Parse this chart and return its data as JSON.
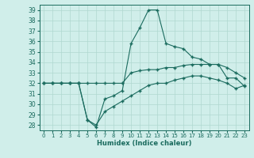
{
  "xlabel": "Humidex (Indice chaleur)",
  "bg_color": "#d0eeea",
  "line_color": "#1a6b5e",
  "grid_color": "#b0d8d0",
  "xlim": [
    -0.5,
    23.5
  ],
  "ylim": [
    27.5,
    39.5
  ],
  "yticks": [
    28,
    29,
    30,
    31,
    32,
    33,
    34,
    35,
    36,
    37,
    38,
    39
  ],
  "xticks": [
    0,
    1,
    2,
    3,
    4,
    5,
    6,
    7,
    8,
    9,
    10,
    11,
    12,
    13,
    14,
    15,
    16,
    17,
    18,
    19,
    20,
    21,
    22,
    23
  ],
  "series1": [
    32.0,
    32.0,
    32.0,
    32.0,
    32.0,
    32.0,
    32.0,
    32.0,
    32.0,
    32.0,
    33.0,
    33.2,
    33.3,
    33.3,
    33.5,
    33.5,
    33.7,
    33.8,
    33.8,
    33.8,
    33.8,
    33.5,
    33.0,
    32.5
  ],
  "series2": [
    32.0,
    32.0,
    32.0,
    32.0,
    32.0,
    28.5,
    27.8,
    30.5,
    30.8,
    31.3,
    35.8,
    37.3,
    39.0,
    39.0,
    35.8,
    35.5,
    35.3,
    34.5,
    34.3,
    33.8,
    33.8,
    32.5,
    32.5,
    31.7
  ],
  "series3": [
    32.0,
    32.0,
    32.0,
    32.0,
    32.0,
    28.5,
    28.0,
    29.3,
    29.8,
    30.3,
    30.8,
    31.3,
    31.8,
    32.0,
    32.0,
    32.3,
    32.5,
    32.7,
    32.7,
    32.5,
    32.3,
    32.0,
    31.5,
    31.8
  ]
}
